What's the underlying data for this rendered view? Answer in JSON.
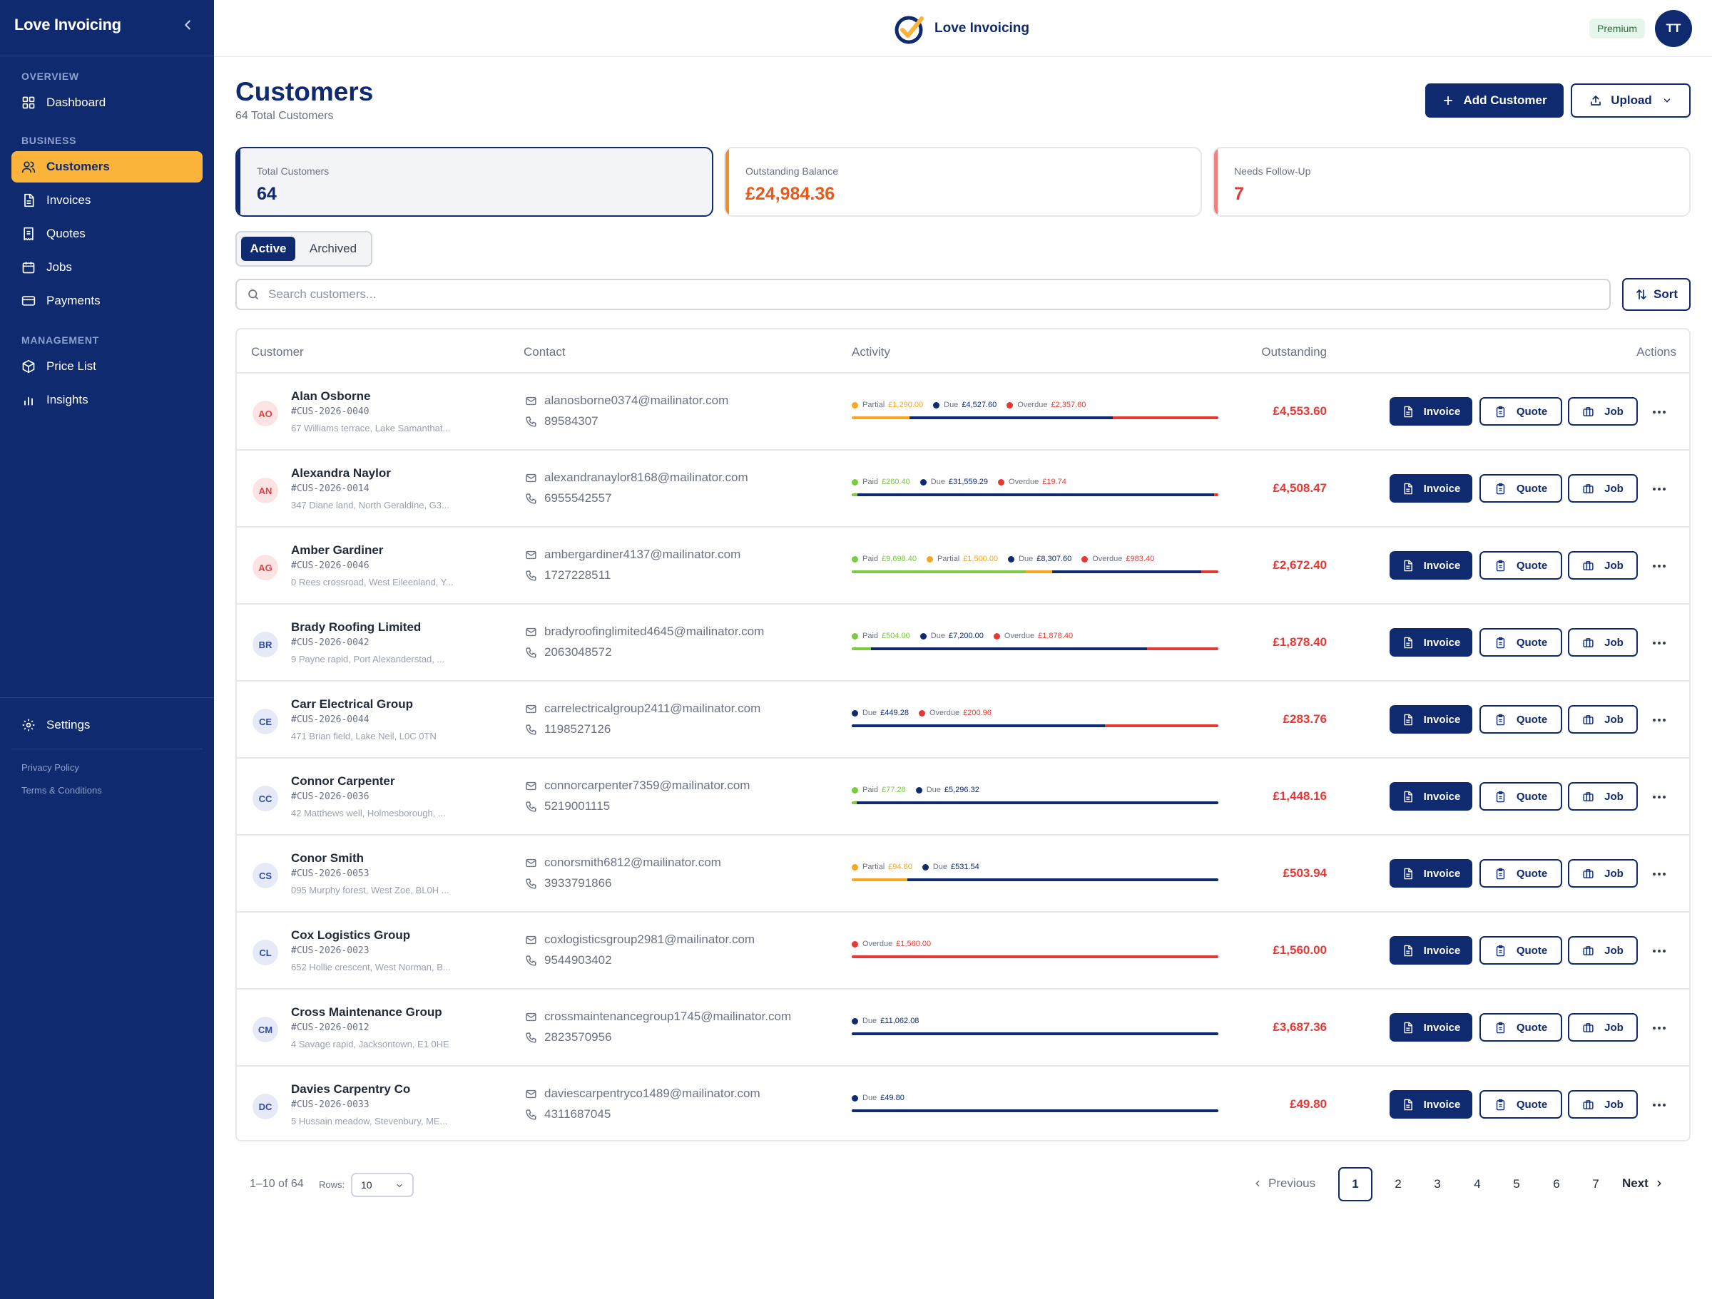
{
  "app": {
    "name": "Love Invoicing"
  },
  "sidebar": {
    "brand": "Love Invoicing",
    "sections": {
      "overview": "OVERVIEW",
      "business": "BUSINESS",
      "management": "MANAGEMENT"
    },
    "items": {
      "dashboard": "Dashboard",
      "customers": "Customers",
      "invoices": "Invoices",
      "quotes": "Quotes",
      "jobs": "Jobs",
      "payments": "Payments",
      "price_list": "Price List",
      "insights": "Insights",
      "settings": "Settings"
    },
    "active_item": "customers",
    "links": {
      "privacy": "Privacy Policy",
      "terms": "Terms & Conditions"
    }
  },
  "topbar": {
    "logo_text": "Love Invoicing",
    "plan_badge": "Premium",
    "user_initials": "TT"
  },
  "header": {
    "title": "Customers",
    "subtitle": "64 Total Customers",
    "add_button": "Add Customer",
    "upload_button": "Upload"
  },
  "stats": {
    "total": {
      "label": "Total Customers",
      "value": "64"
    },
    "outstanding": {
      "label": "Outstanding Balance",
      "value": "£24,984.36"
    },
    "followup": {
      "label": "Needs Follow-Up",
      "value": "7"
    }
  },
  "tabs": {
    "active": "Active",
    "archived": "Archived",
    "selected": "Active"
  },
  "search": {
    "placeholder": "Search customers...",
    "value": "",
    "sort_button": "Sort"
  },
  "table": {
    "columns": {
      "customer": "Customer",
      "contact": "Contact",
      "activity": "Activity",
      "outstanding": "Outstanding",
      "actions": "Actions"
    },
    "action_labels": {
      "invoice": "Invoice",
      "quote": "Quote",
      "job": "Job"
    },
    "rows": [
      {
        "initials": "AO",
        "name": "Alan Osborne",
        "id": "#CUS-2026-0040",
        "address": "67 Williams terrace, Lake Samanthat...",
        "email": "alanosborne0374@mailinator.com",
        "phone": "89584307",
        "outstanding": "£4,553.60",
        "activity": [
          {
            "label": "Partial",
            "amount": "£1,290.00",
            "type": "partial",
            "share": 0.157
          },
          {
            "label": "Due",
            "amount": "£4,527.60",
            "type": "due",
            "share": 0.555
          },
          {
            "label": "Overdue",
            "amount": "£2,357.60",
            "type": "overdue",
            "share": 0.288
          }
        ]
      },
      {
        "initials": "AN",
        "name": "Alexandra Naylor",
        "id": "#CUS-2026-0014",
        "address": "347 Diane land, North Geraldine, G3...",
        "email": "alexandranaylor8168@mailinator.com",
        "phone": "6955542557",
        "outstanding": "£4,508.47",
        "activity": [
          {
            "label": "Paid",
            "amount": "£260.40",
            "type": "paid",
            "share": 0.016
          },
          {
            "label": "Due",
            "amount": "£31,559.29",
            "type": "due",
            "share": 0.973
          },
          {
            "label": "Overdue",
            "amount": "£19.74",
            "type": "overdue",
            "share": 0.011
          }
        ]
      },
      {
        "initials": "AG",
        "name": "Amber Gardiner",
        "id": "#CUS-2026-0046",
        "address": "0 Rees crossroad, West Eileenland, Y...",
        "email": "ambergardiner4137@mailinator.com",
        "phone": "1727228511",
        "outstanding": "£2,672.40",
        "activity": [
          {
            "label": "Paid",
            "amount": "£9,698.40",
            "type": "paid",
            "share": 0.474
          },
          {
            "label": "Partial",
            "amount": "£1,500.00",
            "type": "partial",
            "share": 0.073
          },
          {
            "label": "Due",
            "amount": "£8,307.60",
            "type": "due",
            "share": 0.406
          },
          {
            "label": "Overdue",
            "amount": "£983.40",
            "type": "overdue",
            "share": 0.047
          }
        ]
      },
      {
        "initials": "BR",
        "name": "Brady Roofing Limited",
        "id": "#CUS-2026-0042",
        "address": "9 Payne rapid, Port Alexanderstad, ...",
        "email": "bradyroofinglimited4645@mailinator.com",
        "phone": "2063048572",
        "outstanding": "£1,878.40",
        "activity": [
          {
            "label": "Paid",
            "amount": "£504.00",
            "type": "paid",
            "share": 0.052
          },
          {
            "label": "Due",
            "amount": "£7,200.00",
            "type": "due",
            "share": 0.754
          },
          {
            "label": "Overdue",
            "amount": "£1,878.40",
            "type": "overdue",
            "share": 0.194
          }
        ]
      },
      {
        "initials": "CE",
        "name": "Carr Electrical Group",
        "id": "#CUS-2026-0044",
        "address": "471 Brian field, Lake Neil, L0C 0TN",
        "email": "carrelectricalgroup2411@mailinator.com",
        "phone": "1198527126",
        "outstanding": "£283.76",
        "activity": [
          {
            "label": "Due",
            "amount": "£449.28",
            "type": "due",
            "share": 0.691
          },
          {
            "label": "Overdue",
            "amount": "£200.96",
            "type": "overdue",
            "share": 0.309
          }
        ]
      },
      {
        "initials": "CC",
        "name": "Connor Carpenter",
        "id": "#CUS-2026-0036",
        "address": "42 Matthews well, Holmesborough, ...",
        "email": "connorcarpenter7359@mailinator.com",
        "phone": "5219001115",
        "outstanding": "£1,448.16",
        "activity": [
          {
            "label": "Paid",
            "amount": "£77.28",
            "type": "paid",
            "share": 0.014
          },
          {
            "label": "Due",
            "amount": "£5,296.32",
            "type": "due",
            "share": 0.986
          }
        ]
      },
      {
        "initials": "CS",
        "name": "Conor Smith",
        "id": "#CUS-2026-0053",
        "address": "095 Murphy forest, West Zoe, BL0H ...",
        "email": "conorsmith6812@mailinator.com",
        "phone": "3933791866",
        "outstanding": "£503.94",
        "activity": [
          {
            "label": "Partial",
            "amount": "£94.60",
            "type": "partial",
            "share": 0.151
          },
          {
            "label": "Due",
            "amount": "£531.54",
            "type": "due",
            "share": 0.849
          }
        ]
      },
      {
        "initials": "CL",
        "name": "Cox Logistics Group",
        "id": "#CUS-2026-0023",
        "address": "652 Hollie crescent, West Norman, B...",
        "email": "coxlogisticsgroup2981@mailinator.com",
        "phone": "9544903402",
        "outstanding": "£1,560.00",
        "activity": [
          {
            "label": "Overdue",
            "amount": "£1,560.00",
            "type": "overdue",
            "share": 1.0
          }
        ]
      },
      {
        "initials": "CM",
        "name": "Cross Maintenance Group",
        "id": "#CUS-2026-0012",
        "address": "4 Savage rapid, Jacksontown, E1 0HE",
        "email": "crossmaintenancegroup1745@mailinator.com",
        "phone": "2823570956",
        "outstanding": "£3,687.36",
        "activity": [
          {
            "label": "Due",
            "amount": "£11,062.08",
            "type": "due",
            "share": 1.0
          }
        ]
      },
      {
        "initials": "DC",
        "name": "Davies Carpentry Co",
        "id": "#CUS-2026-0033",
        "address": "5 Hussain meadow, Stevenbury, ME...",
        "email": "daviescarpentryco1489@mailinator.com",
        "phone": "4311687045",
        "outstanding": "£49.80",
        "activity": [
          {
            "label": "Due",
            "amount": "£49.80",
            "type": "due",
            "share": 1.0
          }
        ]
      }
    ]
  },
  "pagination": {
    "range": "1–10 of 64",
    "rows_label": "Rows:",
    "rows_value": "10",
    "previous": "Previous",
    "next": "Next",
    "pages": [
      "1",
      "2",
      "3",
      "4",
      "5",
      "6",
      "7"
    ],
    "current": "1"
  },
  "colors": {
    "navy": "#0f2a6e",
    "accent": "#fbb33a",
    "paid": "#7ac943",
    "partial": "#f5a623",
    "due": "#0f2a6e",
    "overdue": "#e53935",
    "outstanding": "#e53935",
    "stat_orange": "#f28c28",
    "stat_red": "#f08080"
  }
}
